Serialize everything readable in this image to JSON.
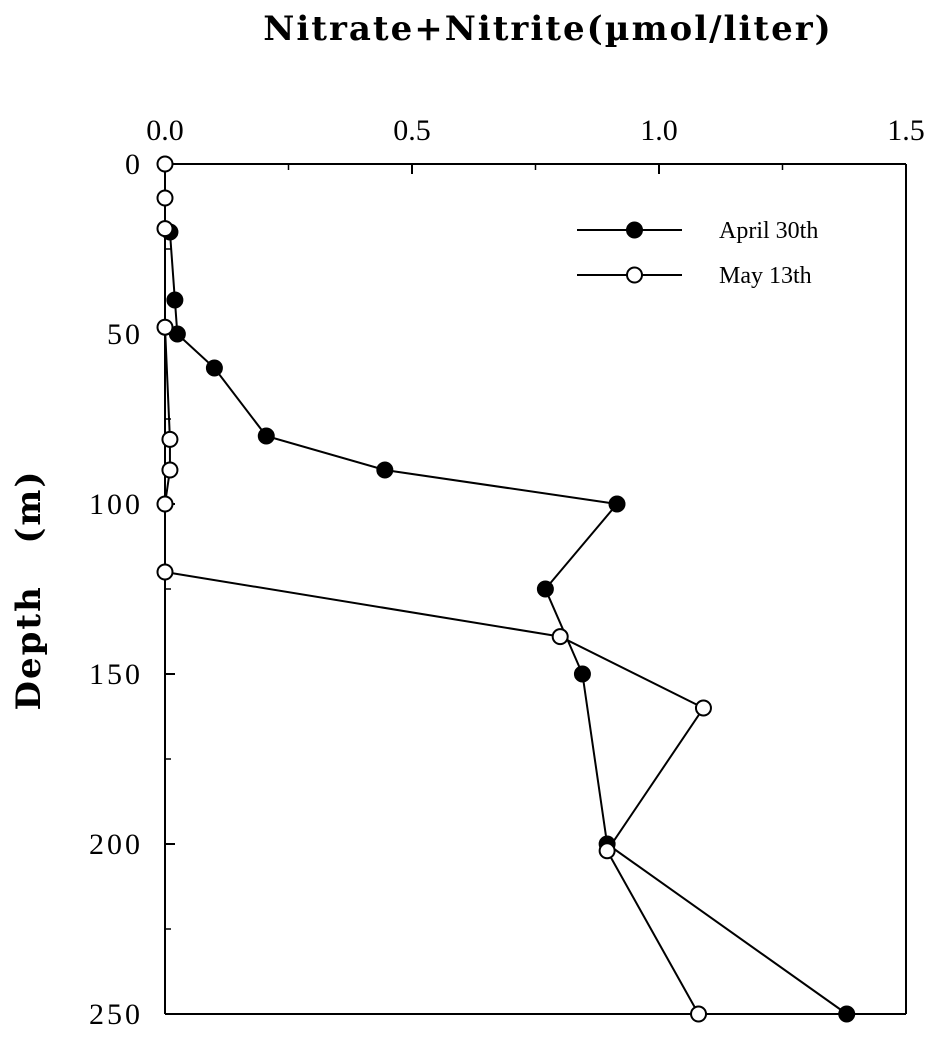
{
  "chart_data": {
    "type": "line",
    "title": "Nitrate+Nitrite(µmol/liter)",
    "xlabel": "Nitrate+Nitrite(µmol/liter)",
    "ylabel": "Depth   (m)",
    "x_axis_position": "top",
    "y_inverted": true,
    "xlim": [
      0,
      1.5
    ],
    "ylim": [
      0,
      250
    ],
    "xticks": [
      0.0,
      0.5,
      1.0,
      1.5
    ],
    "xtick_labels": [
      "0.0",
      "0.5",
      "1.0",
      "1.5"
    ],
    "yticks": [
      0,
      50,
      100,
      150,
      200,
      250
    ],
    "ytick_labels": [
      "0",
      "50",
      "100",
      "150",
      "200",
      "250"
    ],
    "legend_position": "top-right",
    "grid": false,
    "series": [
      {
        "name": "April 30th",
        "marker": "filled-circle",
        "color": "#000000",
        "x": [
          0.01,
          0.02,
          0.025,
          0.1,
          0.205,
          0.445,
          0.915,
          0.77,
          0.845,
          0.895,
          1.38
        ],
        "y": [
          20,
          40,
          50,
          60,
          80,
          90,
          100,
          125,
          150,
          200,
          250
        ]
      },
      {
        "name": "May 13th",
        "marker": "open-circle",
        "color": "#000000",
        "x": [
          0.0,
          0.0,
          0.0,
          0.0,
          0.01,
          0.01,
          0.0,
          0.0,
          0.8,
          1.09,
          0.895,
          1.08
        ],
        "y": [
          0,
          10,
          19,
          48,
          81,
          90,
          100,
          120,
          139,
          160,
          202,
          250
        ]
      }
    ]
  }
}
